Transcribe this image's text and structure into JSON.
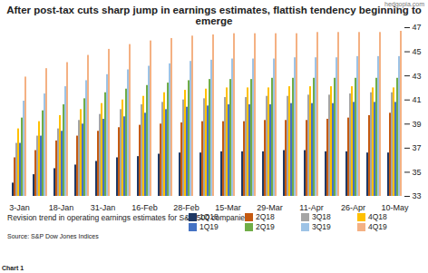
{
  "chart_data": {
    "type": "bar",
    "title": "After post-tax cuts sharp jump in earnings estimates, flattish tendency beginning to emerge",
    "chart_label": "Chart 1",
    "watermark": "hedgopia.com",
    "legend_title": "Revision trend in operating earnings estimates for S&P 500 companies:",
    "source": "Source: S&P Dow Jones Indices",
    "categories": [
      "3-Jan",
      null,
      "18-Jan",
      null,
      "31-Jan",
      null,
      "16-Feb",
      null,
      "28-Feb",
      null,
      "15-Mar",
      null,
      "29-Mar",
      null,
      "11-Apr",
      null,
      "26-Apr",
      null,
      "10-May"
    ],
    "series": [
      {
        "name": "1Q18",
        "color": "#1f3864",
        "values": [
          34.1,
          34.8,
          35.3,
          35.6,
          35.9,
          36.2,
          36.3,
          36.5,
          36.6,
          36.6,
          36.7,
          36.7,
          36.7,
          36.8,
          36.8,
          36.7,
          36.7,
          36.6,
          36.6
        ]
      },
      {
        "name": "2Q18",
        "color": "#c55a11",
        "values": [
          36.2,
          36.8,
          37.6,
          38.0,
          38.4,
          38.7,
          38.9,
          39.0,
          39.1,
          39.2,
          39.2,
          39.2,
          39.3,
          39.3,
          39.3,
          39.4,
          39.5,
          39.7,
          39.9
        ]
      },
      {
        "name": "3Q18",
        "color": "#a5a5a5",
        "values": [
          37.4,
          38.0,
          38.6,
          39.3,
          39.8,
          40.2,
          40.6,
          40.8,
          41.0,
          41.1,
          41.2,
          41.2,
          41.3,
          41.3,
          41.4,
          41.4,
          41.5,
          41.6,
          41.6
        ]
      },
      {
        "name": "4Q18",
        "color": "#ffc000",
        "values": [
          38.6,
          39.2,
          39.7,
          40.2,
          40.7,
          41.0,
          41.3,
          41.6,
          41.8,
          41.9,
          42.0,
          42.0,
          42.0,
          42.1,
          42.1,
          42.1,
          42.1,
          42.0,
          42.0
        ]
      },
      {
        "name": "1Q19",
        "color": "#4472c4",
        "values": [
          37.4,
          38.0,
          38.4,
          39.0,
          39.4,
          39.6,
          39.9,
          40.2,
          40.4,
          40.5,
          40.6,
          40.6,
          40.6,
          40.7,
          40.7,
          40.7,
          40.8,
          40.8,
          40.8
        ]
      },
      {
        "name": "2Q19",
        "color": "#70ad47",
        "values": [
          39.5,
          40.1,
          40.6,
          41.1,
          41.6,
          41.9,
          42.2,
          42.4,
          42.6,
          42.7,
          42.7,
          42.7,
          42.8,
          42.8,
          42.8,
          42.8,
          42.8,
          42.8,
          42.8
        ]
      },
      {
        "name": "3Q19",
        "color": "#9dc3e6",
        "values": [
          40.9,
          41.5,
          42.1,
          42.6,
          43.1,
          43.5,
          43.8,
          44.0,
          44.2,
          44.3,
          44.4,
          44.4,
          44.4,
          44.5,
          44.5,
          44.5,
          44.6,
          44.6,
          44.6
        ]
      },
      {
        "name": "4Q19",
        "color": "#f4b183",
        "values": [
          42.9,
          43.6,
          44.1,
          44.7,
          45.2,
          45.6,
          45.9,
          46.1,
          46.3,
          46.4,
          46.5,
          46.5,
          46.5,
          46.5,
          46.6,
          46.6,
          46.6,
          46.6,
          46.7
        ]
      }
    ],
    "ylim": [
      33,
      47
    ],
    "yticks": [
      33,
      35,
      37,
      39,
      41,
      43,
      45,
      47
    ],
    "grid": false
  }
}
